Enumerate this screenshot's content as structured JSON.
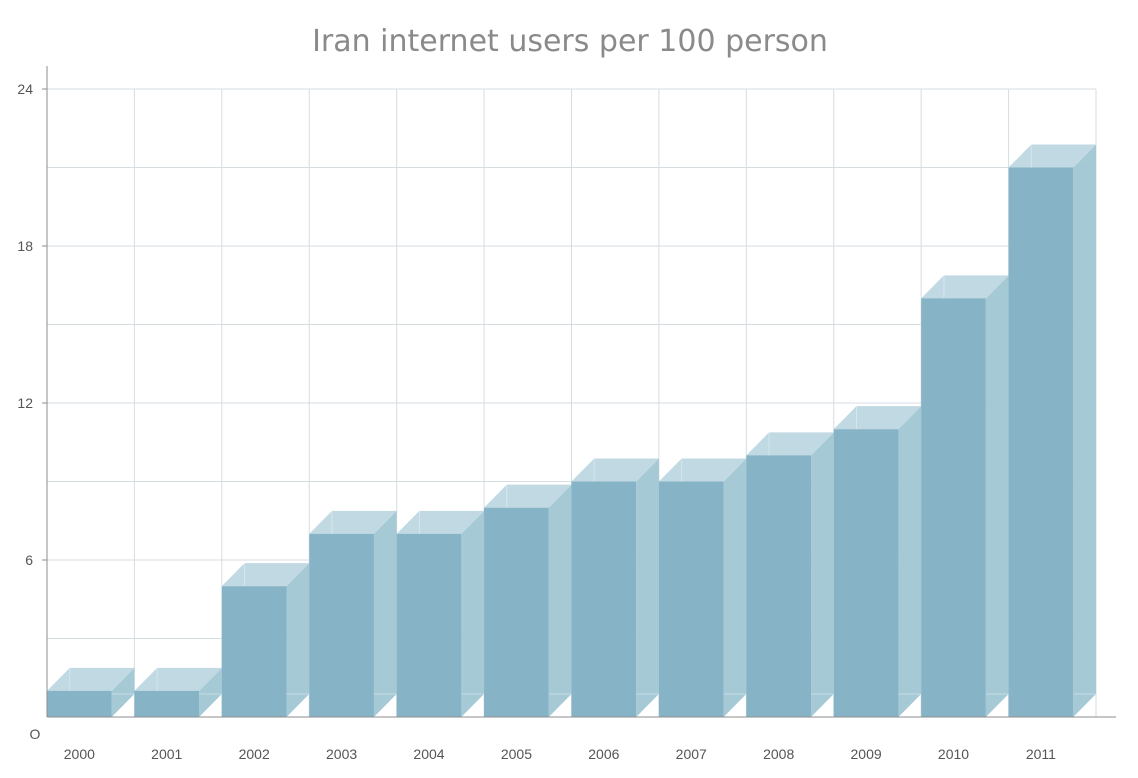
{
  "chart_data": {
    "type": "bar",
    "title": "Iran internet users per 100 person",
    "xlabel": "",
    "ylabel": "",
    "origin_label": "O",
    "categories": [
      "2000",
      "2001",
      "2002",
      "2003",
      "2004",
      "2005",
      "2006",
      "2007",
      "2008",
      "2009",
      "2010",
      "2011"
    ],
    "values": [
      1,
      1,
      5,
      7,
      7,
      8,
      9,
      9,
      10,
      11,
      16,
      21
    ],
    "ylim": [
      0,
      24
    ],
    "yticks": [
      6,
      12,
      18,
      24
    ],
    "grid": true,
    "style": "3d",
    "colors": {
      "front": "#86b3c5",
      "top": "#c1d9e3",
      "side": "#a1c6d4",
      "grid": "#d6dde1",
      "title": "#8a8a8a",
      "ticks": "#555555"
    }
  }
}
